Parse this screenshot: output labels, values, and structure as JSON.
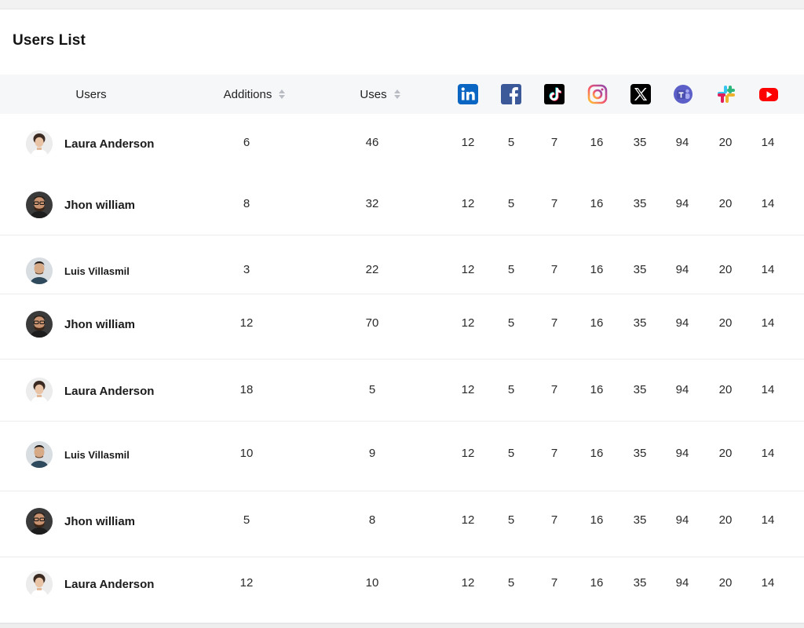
{
  "title": "Users List",
  "columns": {
    "users": "Users",
    "additions": "Additions",
    "uses": "Uses"
  },
  "platforms": [
    {
      "name": "linkedin-icon"
    },
    {
      "name": "facebook-icon"
    },
    {
      "name": "tiktok-icon"
    },
    {
      "name": "instagram-icon"
    },
    {
      "name": "x-icon"
    },
    {
      "name": "teams-icon"
    },
    {
      "name": "slack-icon"
    },
    {
      "name": "youtube-icon"
    }
  ],
  "rows": [
    {
      "name": "Laura Anderson",
      "avatar": "female",
      "additions": "6",
      "uses": "46",
      "counts": [
        "12",
        "5",
        "7",
        "16",
        "35",
        "94",
        "20",
        "14"
      ]
    },
    {
      "name": "Jhon william",
      "avatar": "male-glasses",
      "additions": "8",
      "uses": "32",
      "counts": [
        "12",
        "5",
        "7",
        "16",
        "35",
        "94",
        "20",
        "14"
      ]
    },
    {
      "name": "Luis Villasmil",
      "avatar": "male",
      "additions": "3",
      "uses": "22",
      "counts": [
        "12",
        "5",
        "7",
        "16",
        "35",
        "94",
        "20",
        "14"
      ]
    },
    {
      "name": "Jhon william",
      "avatar": "male-glasses",
      "additions": "12",
      "uses": "70",
      "counts": [
        "12",
        "5",
        "7",
        "16",
        "35",
        "94",
        "20",
        "14"
      ]
    },
    {
      "name": "Laura Anderson",
      "avatar": "female",
      "additions": "18",
      "uses": "5",
      "counts": [
        "12",
        "5",
        "7",
        "16",
        "35",
        "94",
        "20",
        "14"
      ]
    },
    {
      "name": "Luis Villasmil",
      "avatar": "male",
      "additions": "10",
      "uses": "9",
      "counts": [
        "12",
        "5",
        "7",
        "16",
        "35",
        "94",
        "20",
        "14"
      ]
    },
    {
      "name": "Jhon william",
      "avatar": "male-glasses",
      "additions": "5",
      "uses": "8",
      "counts": [
        "12",
        "5",
        "7",
        "16",
        "35",
        "94",
        "20",
        "14"
      ]
    },
    {
      "name": "Laura Anderson",
      "avatar": "female",
      "additions": "12",
      "uses": "10",
      "counts": [
        "12",
        "5",
        "7",
        "16",
        "35",
        "94",
        "20",
        "14"
      ]
    }
  ],
  "colors": {
    "linkedin": "#0a66c2",
    "facebook": "#3b5998",
    "tiktok": "#000000",
    "x": "#000000",
    "teams": "#5b5fc7",
    "youtube": "#ff0000",
    "header_bg": "#f6f7f9"
  }
}
